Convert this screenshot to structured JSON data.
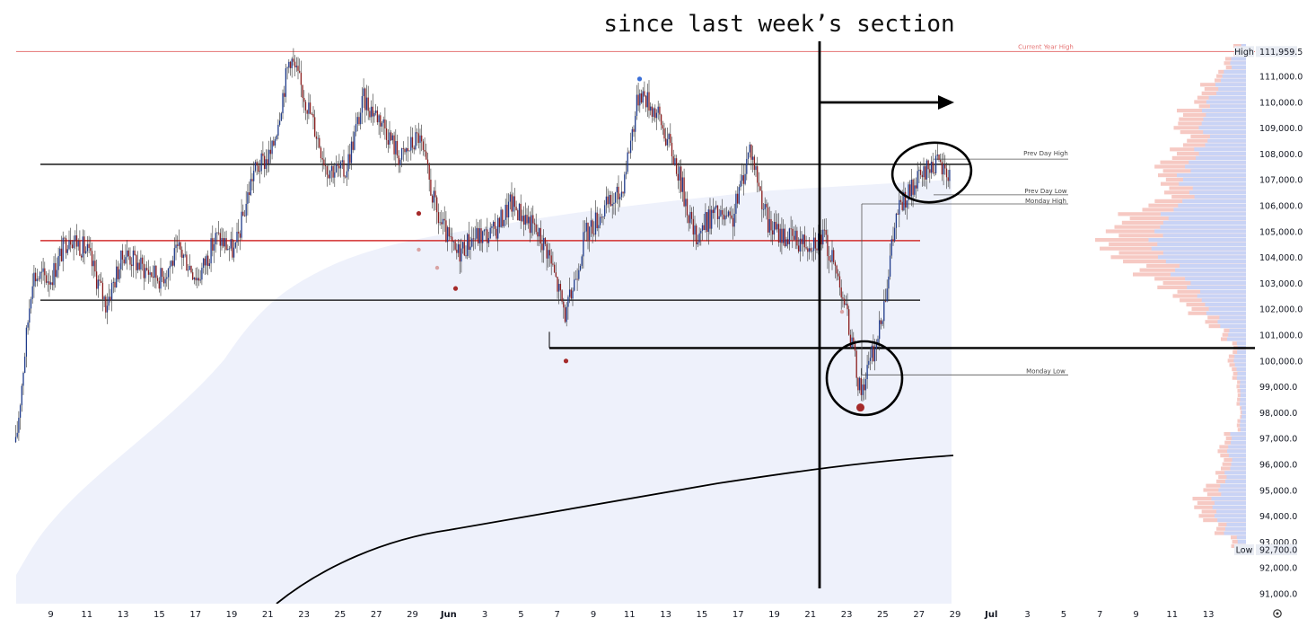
{
  "annotation_text": "since last week’s section",
  "corner_icon": "gear-icon",
  "colors": {
    "bull": "#1e3a8a",
    "bear": "#8b1c1c",
    "hline": "#000000",
    "red_line": "#d32f2f",
    "current_year_high": "#e57373",
    "cloud": "#eef1fb",
    "vp_up": "#c9d3f5",
    "vp_down": "#f6c9c3"
  },
  "chart_data": {
    "type": "candlestick",
    "price_axis": {
      "ticks": [
        "111,000.0",
        "110,000.0",
        "109,000.0",
        "108,000.0",
        "107,000.0",
        "106,000.0",
        "105,000.0",
        "104,000.0",
        "103,000.0",
        "102,000.0",
        "101,000.0",
        "100,000.0",
        "99,000.0",
        "98,000.0",
        "97,000.0",
        "96,000.0",
        "95,000.0",
        "94,000.0",
        "93,000.0",
        "92,000.0",
        "91,000.0"
      ],
      "high_label": "High",
      "high_value": "111,959.5",
      "low_label": "Low",
      "low_value": "92,700.0",
      "range": [
        90500,
        112300
      ]
    },
    "time_axis": {
      "ticks": [
        "9",
        "11",
        "13",
        "15",
        "17",
        "19",
        "21",
        "23",
        "25",
        "27",
        "29",
        "Jun",
        "3",
        "5",
        "7",
        "9",
        "11",
        "13",
        "15",
        "17",
        "19",
        "21",
        "23",
        "25",
        "27",
        "29",
        "Jul",
        "3",
        "5",
        "7",
        "9",
        "11",
        "13"
      ]
    },
    "levels": [
      {
        "label": "Current Year High",
        "price": 111959.5
      },
      {
        "label": "Prev Day High",
        "price": 107800
      },
      {
        "label": "Prev Day Low",
        "price": 106700
      },
      {
        "label": "Monday High",
        "price": 106000
      },
      {
        "label": "Monday Low",
        "price": 99600
      }
    ],
    "horizontal_lines": [
      107600,
      104650,
      102350,
      100500
    ],
    "path": [
      [
        "5/7",
        96000
      ],
      [
        "5/8",
        103300
      ],
      [
        "5/9",
        103200
      ],
      [
        "5/10",
        104900
      ],
      [
        "5/11",
        104200
      ],
      [
        "5/12",
        102200
      ],
      [
        "5/13",
        104200
      ],
      [
        "5/14",
        103600
      ],
      [
        "5/15",
        103200
      ],
      [
        "5/16",
        104300
      ],
      [
        "5/17",
        103200
      ],
      [
        "5/18",
        104800
      ],
      [
        "5/19",
        104200
      ],
      [
        "5/20",
        107300
      ],
      [
        "5/21",
        108000
      ],
      [
        "5/22",
        111800
      ],
      [
        "5/23",
        109800
      ],
      [
        "5/24",
        107500
      ],
      [
        "5/25",
        107300
      ],
      [
        "5/26",
        110100
      ],
      [
        "5/27",
        109300
      ],
      [
        "5/28",
        107800
      ],
      [
        "5/29",
        108700
      ],
      [
        "5/30",
        105600
      ],
      [
        "5/31",
        104100
      ],
      [
        "6/1",
        104800
      ],
      [
        "6/2",
        104900
      ],
      [
        "6/3",
        106100
      ],
      [
        "6/4",
        105400
      ],
      [
        "6/5",
        104300
      ],
      [
        "6/6",
        101700
      ],
      [
        "6/7",
        104800
      ],
      [
        "6/8",
        105800
      ],
      [
        "6/9",
        106500
      ],
      [
        "6/10",
        110500
      ],
      [
        "6/11",
        109500
      ],
      [
        "6/12",
        107600
      ],
      [
        "6/13",
        104800
      ],
      [
        "6/14",
        105700
      ],
      [
        "6/15",
        105300
      ],
      [
        "6/16",
        108300
      ],
      [
        "6/17",
        105200
      ],
      [
        "6/18",
        104800
      ],
      [
        "6/19",
        104600
      ],
      [
        "6/20",
        104800
      ],
      [
        "6/21",
        102800
      ],
      [
        "6/22",
        98800
      ],
      [
        "6/23",
        101000
      ],
      [
        "6/24",
        105800
      ],
      [
        "6/25",
        106800
      ],
      [
        "6/26",
        107700
      ],
      [
        "6/27",
        107100
      ]
    ],
    "markers": [
      {
        "date": "6/10",
        "price": 110900,
        "kind": "bull"
      },
      {
        "date": "5/29",
        "price": 105700,
        "kind": "bear"
      },
      {
        "date": "5/31",
        "price": 102800,
        "kind": "bear"
      },
      {
        "date": "6/6",
        "price": 100000,
        "kind": "bear"
      },
      {
        "date": "6/22",
        "price": 98200,
        "kind": "bear"
      }
    ],
    "vp": [
      {
        "price": 112000,
        "up": 0.03,
        "down": 0.08
      },
      {
        "price": 111500,
        "up": 0.1,
        "down": 0.14
      },
      {
        "price": 111000,
        "up": 0.16,
        "down": 0.2
      },
      {
        "price": 110500,
        "up": 0.2,
        "down": 0.3
      },
      {
        "price": 110000,
        "up": 0.26,
        "down": 0.34
      },
      {
        "price": 109500,
        "up": 0.28,
        "down": 0.44
      },
      {
        "price": 109000,
        "up": 0.3,
        "down": 0.46
      },
      {
        "price": 108500,
        "up": 0.26,
        "down": 0.4
      },
      {
        "price": 108000,
        "up": 0.34,
        "down": 0.5
      },
      {
        "price": 107500,
        "up": 0.4,
        "down": 0.6
      },
      {
        "price": 107000,
        "up": 0.44,
        "down": 0.56
      },
      {
        "price": 106500,
        "up": 0.36,
        "down": 0.52
      },
      {
        "price": 106000,
        "up": 0.46,
        "down": 0.66
      },
      {
        "price": 105500,
        "up": 0.56,
        "down": 0.84
      },
      {
        "price": 105000,
        "up": 0.6,
        "down": 0.92
      },
      {
        "price": 104500,
        "up": 0.62,
        "down": 0.96
      },
      {
        "price": 104000,
        "up": 0.56,
        "down": 0.86
      },
      {
        "price": 103500,
        "up": 0.48,
        "down": 0.72
      },
      {
        "price": 103000,
        "up": 0.4,
        "down": 0.6
      },
      {
        "price": 102500,
        "up": 0.32,
        "down": 0.48
      },
      {
        "price": 102000,
        "up": 0.26,
        "down": 0.38
      },
      {
        "price": 101500,
        "up": 0.18,
        "down": 0.26
      },
      {
        "price": 101000,
        "up": 0.12,
        "down": 0.16
      },
      {
        "price": 100500,
        "up": 0.06,
        "down": 0.09
      },
      {
        "price": 100000,
        "up": 0.08,
        "down": 0.12
      },
      {
        "price": 99500,
        "up": 0.06,
        "down": 0.09
      },
      {
        "price": 99000,
        "up": 0.04,
        "down": 0.06
      },
      {
        "price": 98500,
        "up": 0.04,
        "down": 0.06
      },
      {
        "price": 98000,
        "up": 0.03,
        "down": 0.04
      },
      {
        "price": 97500,
        "up": 0.04,
        "down": 0.06
      },
      {
        "price": 97000,
        "up": 0.1,
        "down": 0.14
      },
      {
        "price": 96500,
        "up": 0.12,
        "down": 0.18
      },
      {
        "price": 96000,
        "up": 0.1,
        "down": 0.16
      },
      {
        "price": 95500,
        "up": 0.14,
        "down": 0.2
      },
      {
        "price": 95000,
        "up": 0.18,
        "down": 0.28
      },
      {
        "price": 94500,
        "up": 0.22,
        "down": 0.34
      },
      {
        "price": 94000,
        "up": 0.2,
        "down": 0.3
      },
      {
        "price": 93500,
        "up": 0.14,
        "down": 0.2
      },
      {
        "price": 93000,
        "up": 0.06,
        "down": 0.1
      }
    ]
  }
}
